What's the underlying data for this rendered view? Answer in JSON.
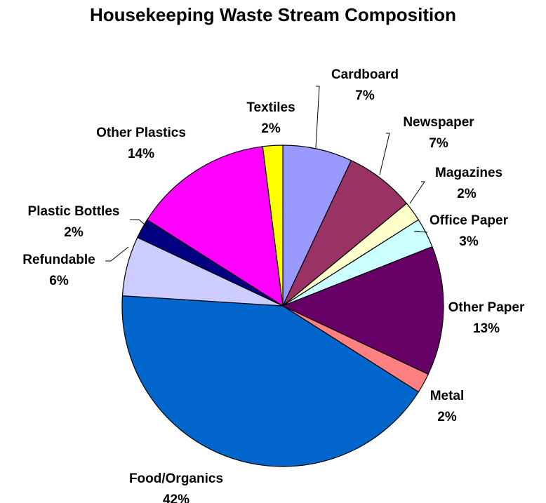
{
  "chart_data": {
    "type": "pie",
    "title": "Housekeeping Waste Stream Composition",
    "slices": [
      {
        "label": "Cardboard",
        "value": 7,
        "display": "7%",
        "color": "#9999ff"
      },
      {
        "label": "Newspaper",
        "value": 7,
        "display": "7%",
        "color": "#993366"
      },
      {
        "label": "Magazines",
        "value": 2,
        "display": "2%",
        "color": "#ffffcc"
      },
      {
        "label": "Office Paper",
        "value": 3,
        "display": "3%",
        "color": "#ccffff"
      },
      {
        "label": "Other Paper",
        "value": 13,
        "display": "13%",
        "color": "#660066"
      },
      {
        "label": "Metal",
        "value": 2,
        "display": "2%",
        "color": "#ff8080"
      },
      {
        "label": "Food/Organics",
        "value": 42,
        "display": "42%",
        "color": "#0066cc"
      },
      {
        "label": "Refundable",
        "value": 6,
        "display": "6%",
        "color": "#ccccff"
      },
      {
        "label": "Plastic Bottles",
        "value": 2,
        "display": "2%",
        "color": "#000080"
      },
      {
        "label": "Other Plastics",
        "value": 14,
        "display": "14%",
        "color": "#ff00ff"
      },
      {
        "label": "Textiles",
        "value": 2,
        "display": "2%",
        "color": "#ffff00"
      }
    ],
    "start": "12 o'clock",
    "direction": "clockwise",
    "legend": "none",
    "data_labels": "outside"
  }
}
